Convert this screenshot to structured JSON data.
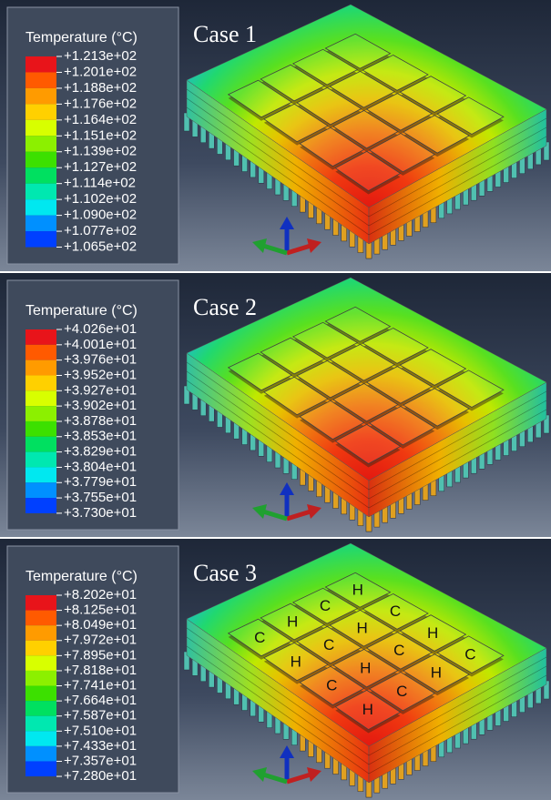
{
  "panels": [
    {
      "case_title": "Case 1",
      "legend": {
        "title": "Temperature (°C)",
        "labels": [
          "+1.213e+02",
          "+1.201e+02",
          "+1.188e+02",
          "+1.176e+02",
          "+1.164e+02",
          "+1.151e+02",
          "+1.139e+02",
          "+1.127e+02",
          "+1.114e+02",
          "+1.102e+02",
          "+1.090e+02",
          "+1.077e+02",
          "+1.065e+02"
        ]
      }
    },
    {
      "case_title": "Case 2",
      "legend": {
        "title": "Temperature (°C)",
        "labels": [
          "+4.026e+01",
          "+4.001e+01",
          "+3.976e+01",
          "+3.952e+01",
          "+3.927e+01",
          "+3.902e+01",
          "+3.878e+01",
          "+3.853e+01",
          "+3.829e+01",
          "+3.804e+01",
          "+3.779e+01",
          "+3.755e+01",
          "+3.730e+01"
        ]
      }
    },
    {
      "case_title": "Case 3",
      "legend": {
        "title": "Temperature (°C)",
        "labels": [
          "+8.202e+01",
          "+8.125e+01",
          "+8.049e+01",
          "+7.972e+01",
          "+7.895e+01",
          "+7.818e+01",
          "+7.741e+01",
          "+7.664e+01",
          "+7.587e+01",
          "+7.510e+01",
          "+7.433e+01",
          "+7.357e+01",
          "+7.280e+01"
        ]
      },
      "chip_labels": [
        [
          "H",
          "C",
          "H",
          "C"
        ],
        [
          "C",
          "H",
          "C",
          "H"
        ],
        [
          "H",
          "C",
          "H",
          "C"
        ],
        [
          "C",
          "H",
          "C",
          "H"
        ]
      ]
    }
  ]
}
